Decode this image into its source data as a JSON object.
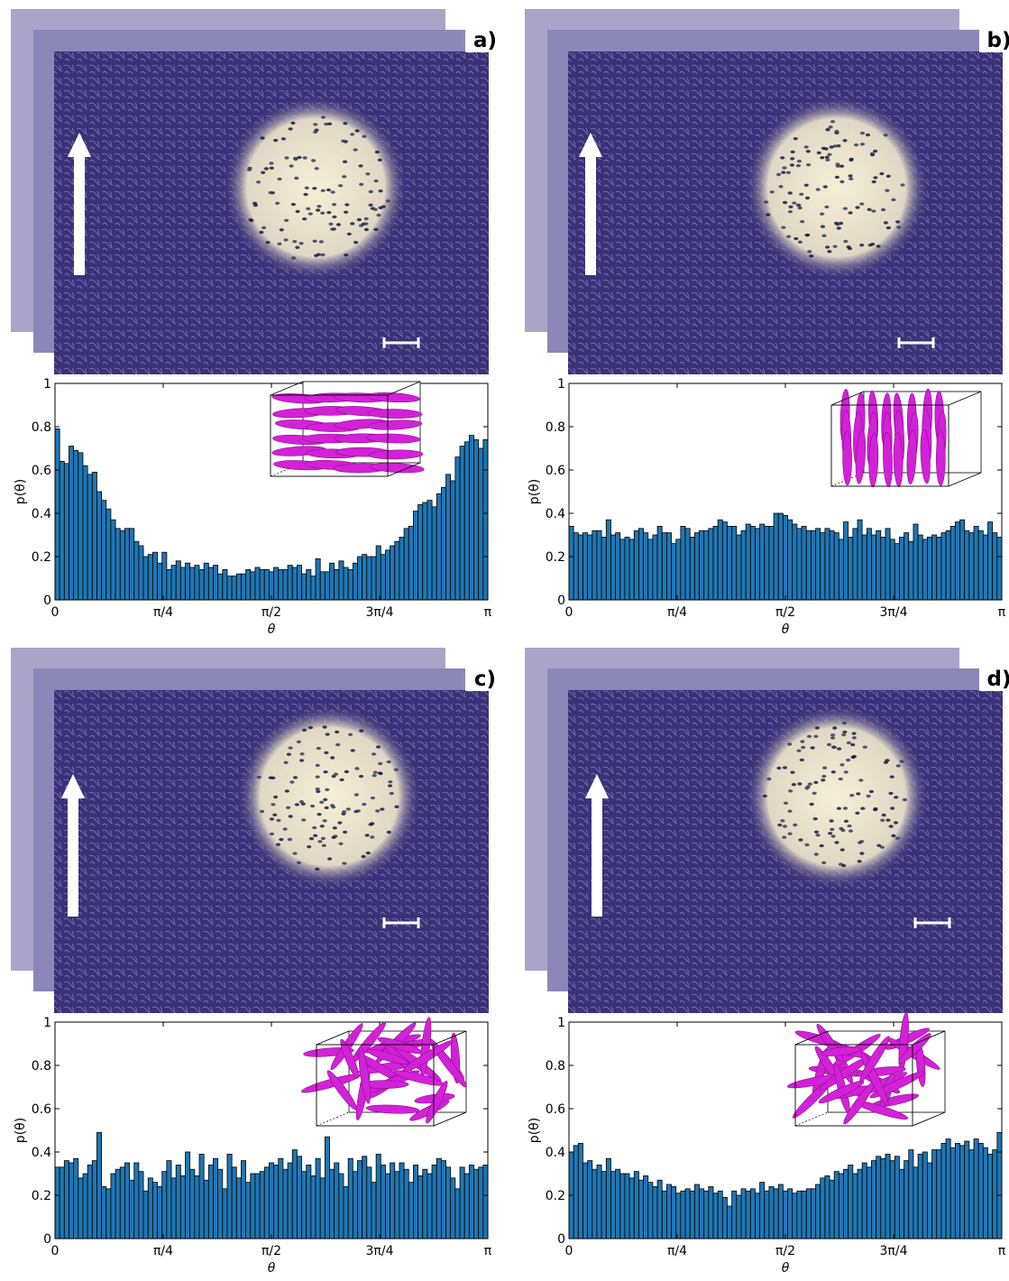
{
  "chart_data": [
    {
      "type": "bar",
      "panel_label": "a)",
      "xlabel": "θ",
      "ylabel": "p(θ)",
      "ylim": [
        0,
        1
      ],
      "xlim": [
        0,
        3.14159
      ],
      "xtick_labels": [
        "0",
        "π/4",
        "π/2",
        "3π/4",
        "π"
      ],
      "ytick_labels": [
        "0",
        "0.2",
        "0.4",
        "0.6",
        "0.8",
        "1"
      ],
      "bar_color": "#1f77b4",
      "inset": "ordered-horizontal",
      "values": [
        0.79,
        0.64,
        0.63,
        0.71,
        0.69,
        0.68,
        0.62,
        0.58,
        0.59,
        0.5,
        0.46,
        0.42,
        0.37,
        0.33,
        0.32,
        0.33,
        0.33,
        0.27,
        0.25,
        0.2,
        0.21,
        0.22,
        0.17,
        0.22,
        0.14,
        0.16,
        0.18,
        0.15,
        0.17,
        0.15,
        0.16,
        0.14,
        0.17,
        0.15,
        0.16,
        0.12,
        0.14,
        0.11,
        0.11,
        0.12,
        0.12,
        0.14,
        0.13,
        0.15,
        0.14,
        0.14,
        0.13,
        0.15,
        0.14,
        0.14,
        0.16,
        0.15,
        0.16,
        0.12,
        0.14,
        0.11,
        0.19,
        0.13,
        0.13,
        0.17,
        0.14,
        0.18,
        0.15,
        0.14,
        0.17,
        0.2,
        0.21,
        0.2,
        0.2,
        0.25,
        0.21,
        0.23,
        0.25,
        0.27,
        0.29,
        0.33,
        0.34,
        0.41,
        0.44,
        0.45,
        0.46,
        0.43,
        0.49,
        0.52,
        0.58,
        0.55,
        0.66,
        0.71,
        0.73,
        0.76,
        0.74,
        0.7,
        0.74
      ]
    },
    {
      "type": "bar",
      "panel_label": "b)",
      "xlabel": "θ",
      "ylabel": "p(θ)",
      "ylim": [
        0,
        1
      ],
      "xlim": [
        0,
        3.14159
      ],
      "xtick_labels": [
        "0",
        "π/4",
        "π/2",
        "3π/4",
        "π"
      ],
      "ytick_labels": [
        "0",
        "0.2",
        "0.4",
        "0.6",
        "0.8",
        "1"
      ],
      "bar_color": "#1f77b4",
      "inset": "ordered-vertical",
      "values": [
        0.34,
        0.31,
        0.3,
        0.31,
        0.3,
        0.32,
        0.32,
        0.29,
        0.37,
        0.3,
        0.31,
        0.28,
        0.29,
        0.28,
        0.32,
        0.33,
        0.31,
        0.28,
        0.3,
        0.34,
        0.31,
        0.31,
        0.26,
        0.28,
        0.34,
        0.33,
        0.29,
        0.31,
        0.32,
        0.32,
        0.33,
        0.34,
        0.37,
        0.36,
        0.34,
        0.34,
        0.3,
        0.32,
        0.35,
        0.34,
        0.33,
        0.35,
        0.34,
        0.34,
        0.4,
        0.4,
        0.39,
        0.37,
        0.35,
        0.33,
        0.34,
        0.32,
        0.32,
        0.33,
        0.31,
        0.33,
        0.32,
        0.31,
        0.28,
        0.36,
        0.29,
        0.33,
        0.37,
        0.3,
        0.33,
        0.3,
        0.32,
        0.29,
        0.33,
        0.28,
        0.26,
        0.29,
        0.31,
        0.27,
        0.35,
        0.3,
        0.28,
        0.29,
        0.3,
        0.29,
        0.31,
        0.32,
        0.34,
        0.36,
        0.37,
        0.32,
        0.31,
        0.34,
        0.32,
        0.3,
        0.36,
        0.31,
        0.29
      ]
    },
    {
      "type": "bar",
      "panel_label": "c)",
      "xlabel": "θ",
      "ylabel": "p(θ)",
      "ylim": [
        0,
        1
      ],
      "xlim": [
        0,
        3.14159
      ],
      "xtick_labels": [
        "0",
        "π/4",
        "π/2",
        "3π/4",
        "π"
      ],
      "ytick_labels": [
        "0",
        "0.2",
        "0.4",
        "0.6",
        "0.8",
        "1"
      ],
      "bar_color": "#1f77b4",
      "inset": "isotropic",
      "values": [
        0.33,
        0.33,
        0.36,
        0.35,
        0.37,
        0.28,
        0.3,
        0.34,
        0.36,
        0.49,
        0.24,
        0.23,
        0.3,
        0.32,
        0.33,
        0.35,
        0.27,
        0.35,
        0.31,
        0.22,
        0.28,
        0.26,
        0.24,
        0.31,
        0.36,
        0.28,
        0.34,
        0.29,
        0.4,
        0.32,
        0.29,
        0.39,
        0.27,
        0.34,
        0.37,
        0.32,
        0.23,
        0.39,
        0.33,
        0.28,
        0.36,
        0.26,
        0.3,
        0.3,
        0.31,
        0.33,
        0.35,
        0.34,
        0.37,
        0.32,
        0.35,
        0.41,
        0.38,
        0.31,
        0.34,
        0.29,
        0.37,
        0.28,
        0.47,
        0.32,
        0.35,
        0.3,
        0.24,
        0.37,
        0.31,
        0.36,
        0.38,
        0.33,
        0.26,
        0.39,
        0.34,
        0.3,
        0.35,
        0.31,
        0.35,
        0.32,
        0.26,
        0.34,
        0.29,
        0.32,
        0.3,
        0.34,
        0.37,
        0.36,
        0.33,
        0.28,
        0.23,
        0.33,
        0.3,
        0.34,
        0.32,
        0.33,
        0.34
      ]
    },
    {
      "type": "bar",
      "panel_label": "d)",
      "xlabel": "θ",
      "ylabel": "p(θ)",
      "ylim": [
        0,
        1
      ],
      "xlim": [
        0,
        3.14159
      ],
      "xtick_labels": [
        "0",
        "π/4",
        "π/2",
        "3π/4",
        "π"
      ],
      "ytick_labels": [
        "0",
        "0.2",
        "0.4",
        "0.6",
        "0.8",
        "1"
      ],
      "bar_color": "#1f77b4",
      "inset": "isotropic",
      "values": [
        0.4,
        0.43,
        0.44,
        0.35,
        0.36,
        0.32,
        0.34,
        0.31,
        0.37,
        0.31,
        0.32,
        0.3,
        0.3,
        0.28,
        0.31,
        0.27,
        0.29,
        0.26,
        0.24,
        0.27,
        0.22,
        0.25,
        0.24,
        0.21,
        0.22,
        0.23,
        0.22,
        0.25,
        0.23,
        0.22,
        0.24,
        0.21,
        0.22,
        0.19,
        0.15,
        0.22,
        0.2,
        0.23,
        0.22,
        0.23,
        0.21,
        0.26,
        0.22,
        0.24,
        0.23,
        0.25,
        0.22,
        0.23,
        0.21,
        0.22,
        0.22,
        0.23,
        0.23,
        0.25,
        0.28,
        0.29,
        0.27,
        0.31,
        0.3,
        0.32,
        0.34,
        0.3,
        0.32,
        0.35,
        0.33,
        0.36,
        0.38,
        0.37,
        0.39,
        0.36,
        0.38,
        0.32,
        0.36,
        0.41,
        0.33,
        0.39,
        0.4,
        0.35,
        0.41,
        0.41,
        0.44,
        0.46,
        0.42,
        0.44,
        0.43,
        0.45,
        0.41,
        0.46,
        0.44,
        0.42,
        0.39,
        0.41,
        0.49
      ]
    }
  ],
  "colors": {
    "bar": "#1f77b4",
    "micrograph_background": "#3a3278",
    "micrograph_spot": "#f6efd6",
    "inset_rods": "#d321d8"
  },
  "icons": [
    "up-arrow-icon",
    "scale-bar-icon"
  ]
}
